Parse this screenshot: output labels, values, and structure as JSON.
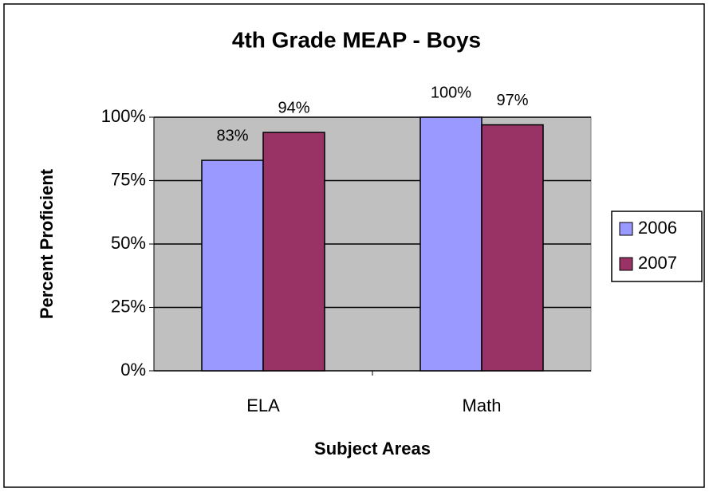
{
  "chart_data": {
    "type": "bar",
    "title": "4th Grade MEAP - Boys",
    "x_label": "Subject Areas",
    "y_label": "Percent Proficient",
    "categories": [
      "ELA",
      "Math"
    ],
    "series": [
      {
        "name": "2006",
        "color": "#9999ff",
        "values": [
          83,
          100
        ],
        "value_labels": [
          "83%",
          "100%"
        ]
      },
      {
        "name": "2007",
        "color": "#993366",
        "values": [
          94,
          97
        ],
        "value_labels": [
          "94%",
          "97%"
        ]
      }
    ],
    "ylim": [
      0,
      100
    ],
    "yticks": [
      {
        "value": 0,
        "label": "0%"
      },
      {
        "value": 25,
        "label": "25%"
      },
      {
        "value": 50,
        "label": "50%"
      },
      {
        "value": 75,
        "label": "75%"
      },
      {
        "value": 100,
        "label": "100%"
      }
    ],
    "grid": true,
    "legend": "right"
  }
}
